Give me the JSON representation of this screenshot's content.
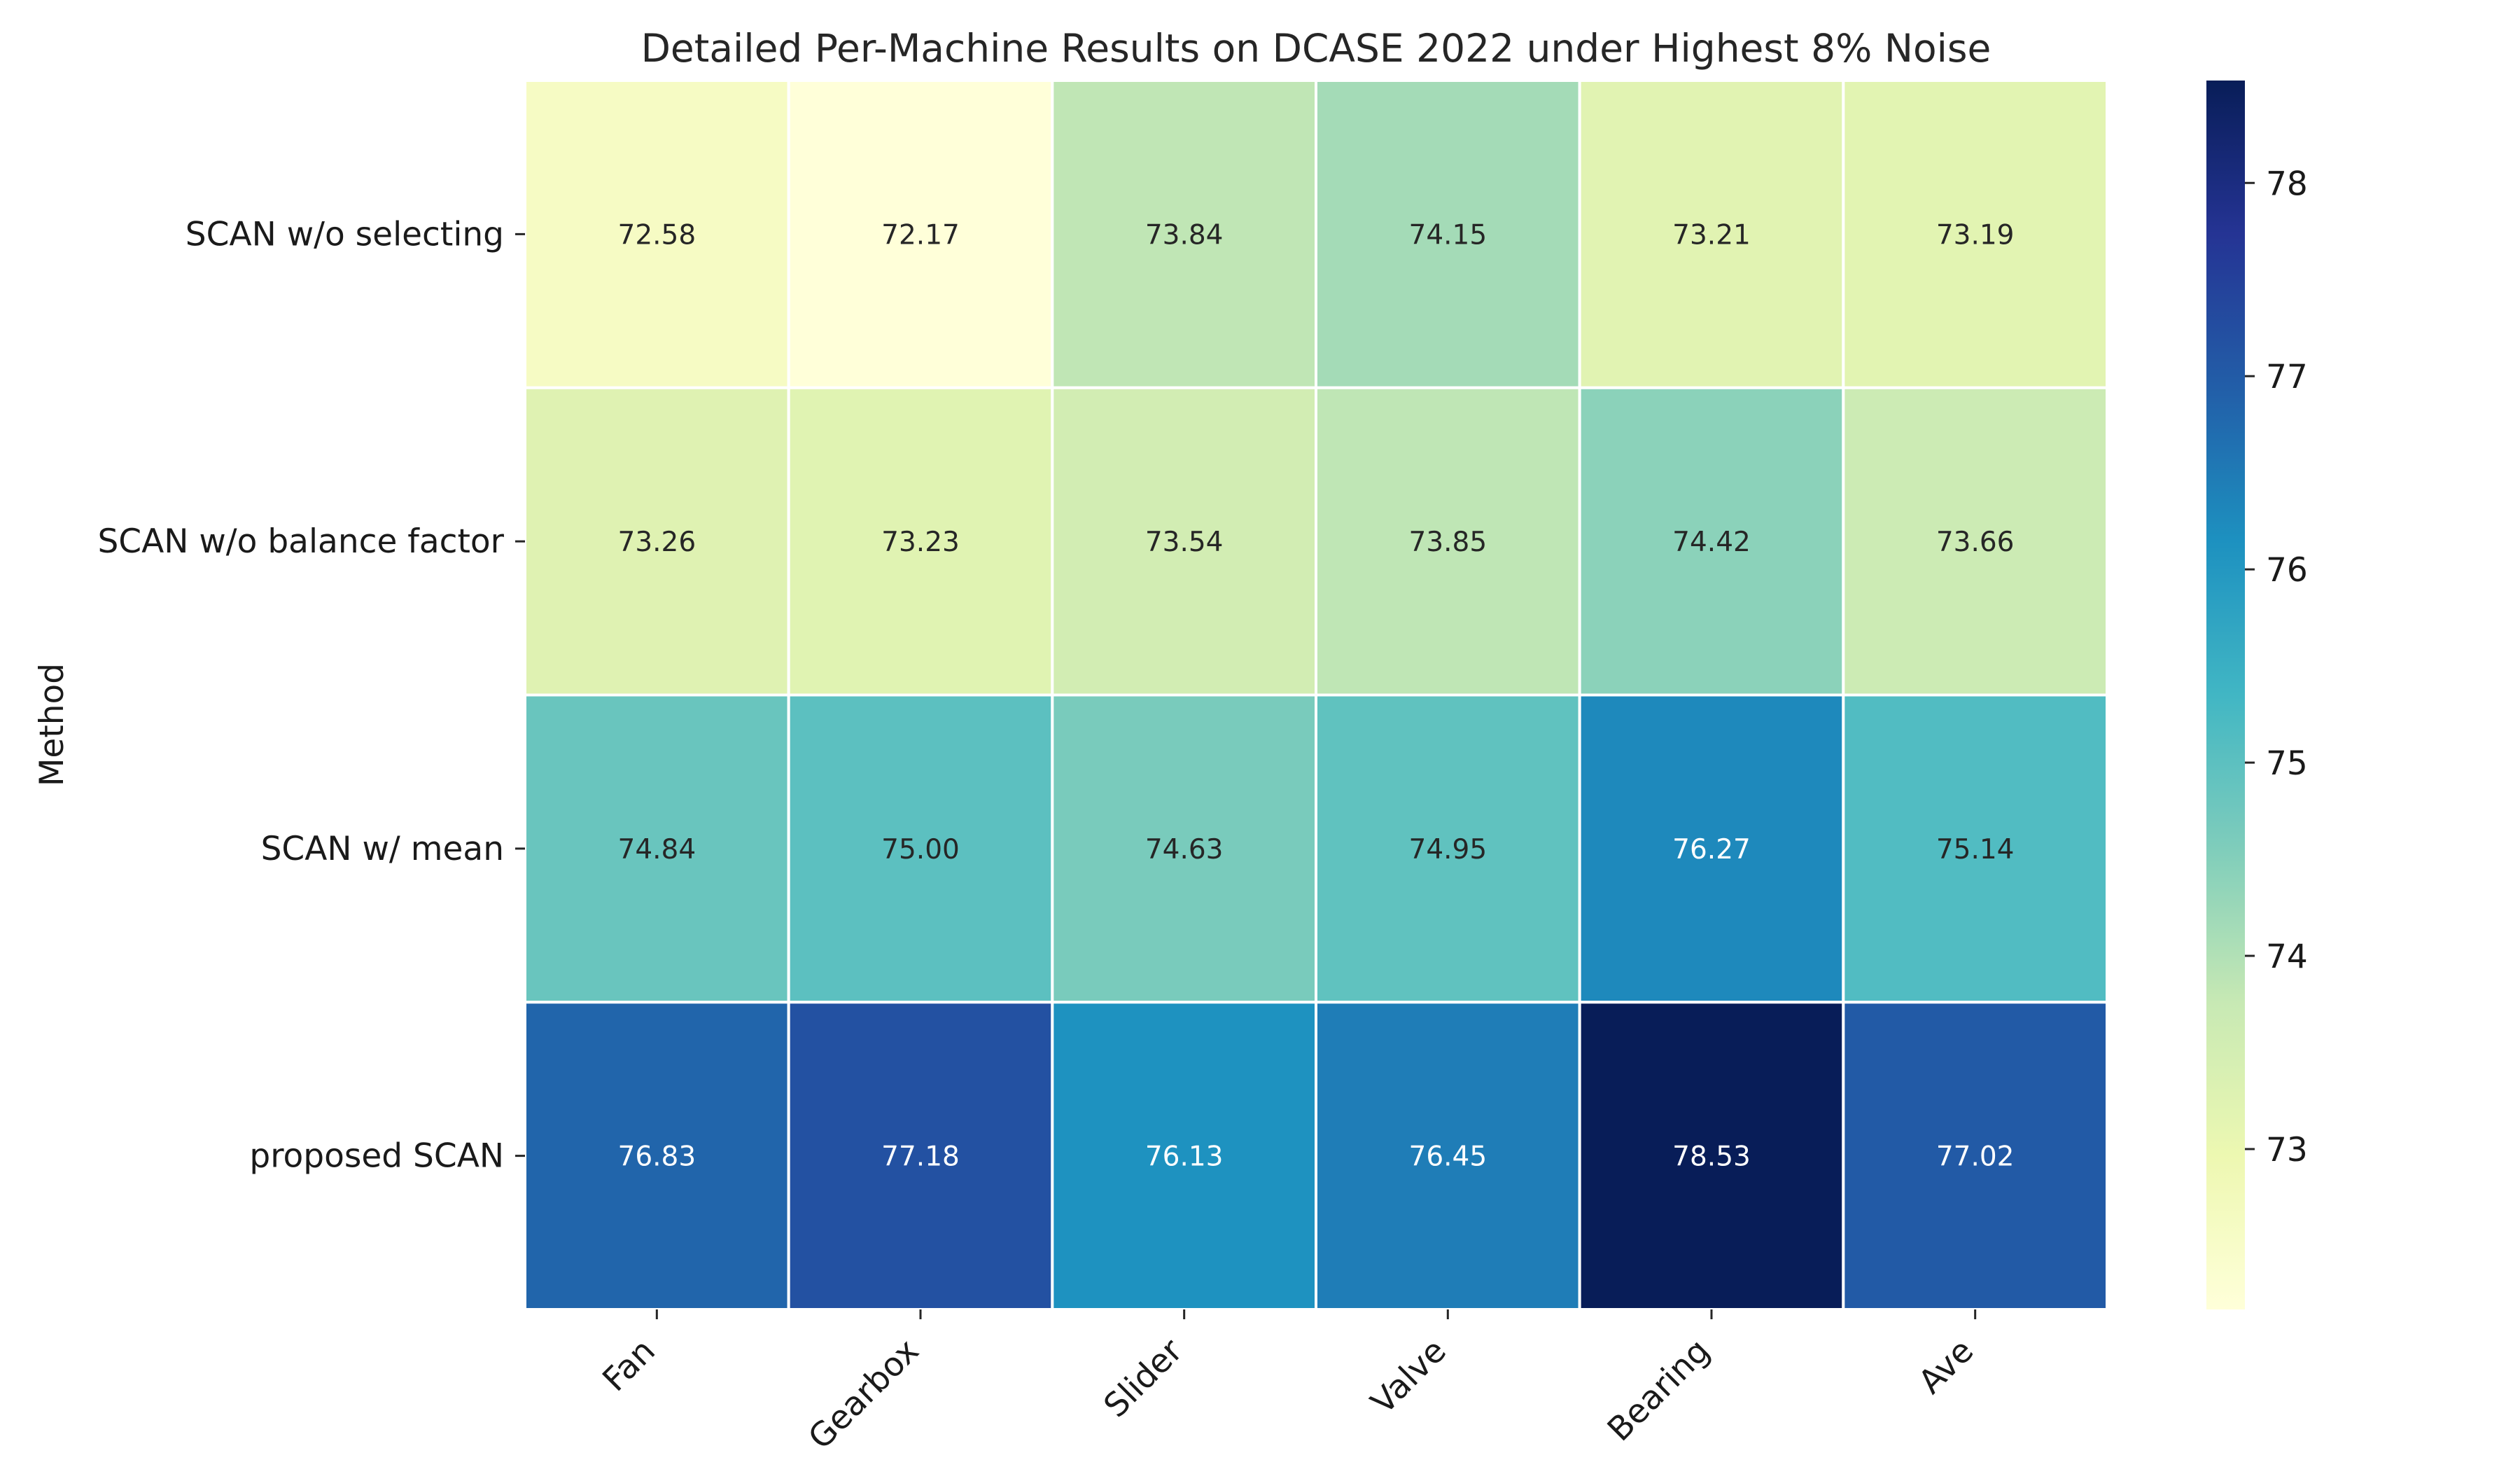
{
  "chart_data": {
    "type": "heatmap",
    "title": "Detailed Per-Machine Results on DCASE 2022 under Highest 8% Noise",
    "ylabel": "Method",
    "xlabel": "",
    "columns": [
      "Fan",
      "Gearbox",
      "Slider",
      "Valve",
      "Bearing",
      "Ave"
    ],
    "rows": [
      "SCAN w/o selecting",
      "SCAN w/o balance factor",
      "SCAN w/ mean",
      "proposed SCAN"
    ],
    "values": [
      [
        72.58,
        72.17,
        73.84,
        74.15,
        73.21,
        73.19
      ],
      [
        73.26,
        73.23,
        73.54,
        73.85,
        74.42,
        73.66
      ],
      [
        74.84,
        75.0,
        74.63,
        74.95,
        76.27,
        75.14
      ],
      [
        76.83,
        77.18,
        76.13,
        76.45,
        78.53,
        77.02
      ]
    ],
    "value_labels": [
      [
        "72.58",
        "72.17",
        "73.84",
        "74.15",
        "73.21",
        "73.19"
      ],
      [
        "73.26",
        "73.23",
        "73.54",
        "73.85",
        "74.42",
        "73.66"
      ],
      [
        "74.84",
        "75.00",
        "74.63",
        "74.95",
        "76.27",
        "75.14"
      ],
      [
        "76.83",
        "77.18",
        "76.13",
        "76.45",
        "78.53",
        "77.02"
      ]
    ],
    "colormap": "YlGnBu",
    "color_range": [
      72.17,
      78.53
    ],
    "colorbar_ticks": [
      "73",
      "74",
      "75",
      "76",
      "77",
      "78"
    ],
    "colorbar_tick_values": [
      73,
      74,
      75,
      76,
      77,
      78
    ],
    "grid": true,
    "legend": "colorbar-right"
  }
}
